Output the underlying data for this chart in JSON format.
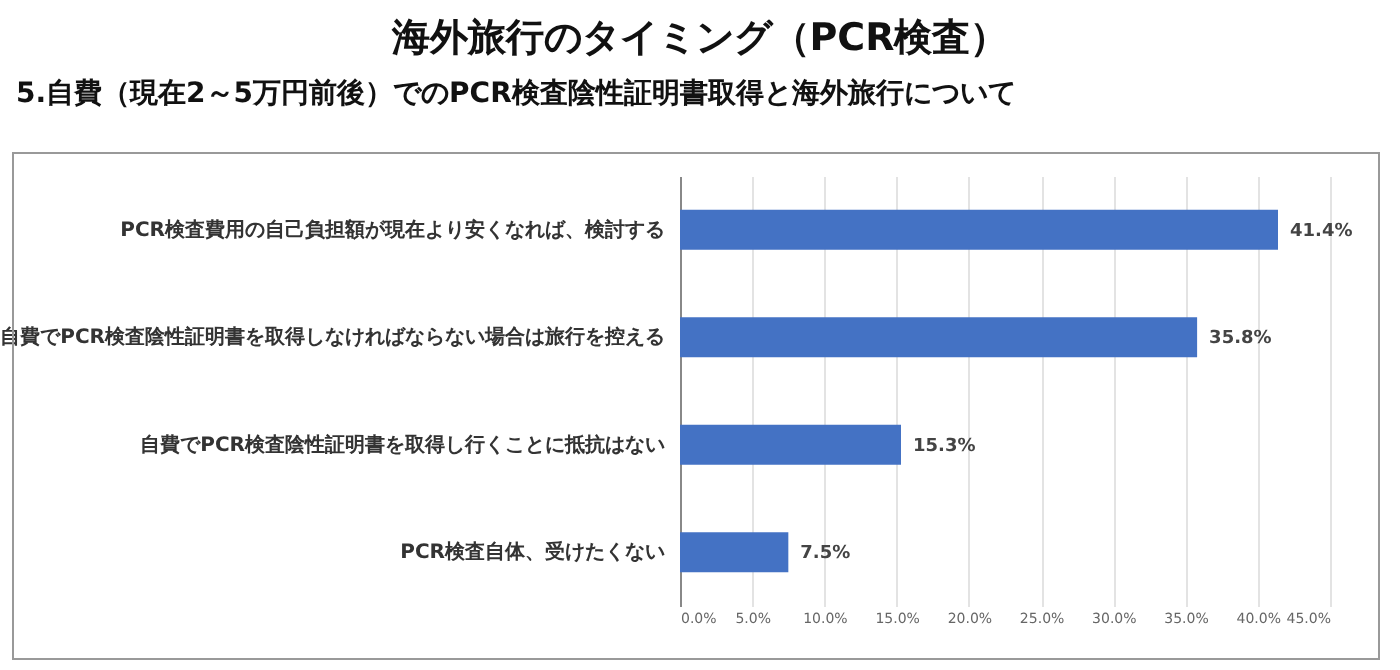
{
  "chart_data": {
    "type": "bar",
    "orientation": "horizontal",
    "title": "海外旅行のタイミング（PCR検査）",
    "subtitle": "5.自費（現在2～5万円前後）でのPCR検査陰性証明書取得と海外旅行について",
    "categories": [
      "PCR検査費用の自己負担額が現在より安くなれば、検討する",
      "自費でPCR検査陰性証明書を取得しなければならない場合は旅行を控える",
      "自費でPCR検査陰性証明書を取得し行くことに抵抗はない",
      "PCR検査自体、受けたくない"
    ],
    "values": [
      41.4,
      35.8,
      15.3,
      7.5
    ],
    "value_labels": [
      "41.4%",
      "35.8%",
      "15.3%",
      "7.5%"
    ],
    "color": "#4472c4",
    "xlim": [
      0,
      45
    ],
    "xticks": [
      {
        "value": 0,
        "label": "0.0%"
      },
      {
        "value": 5,
        "label": "5.0%"
      },
      {
        "value": 10,
        "label": "10.0%"
      },
      {
        "value": 15,
        "label": "15.0%"
      },
      {
        "value": 20,
        "label": "20.0%"
      },
      {
        "value": 25,
        "label": "25.0%"
      },
      {
        "value": 30,
        "label": "30.0%"
      },
      {
        "value": 35,
        "label": "35.0%"
      },
      {
        "value": 40,
        "label": "40.0%"
      },
      {
        "value": 45,
        "label": "45.0%"
      }
    ],
    "grid": "x"
  }
}
